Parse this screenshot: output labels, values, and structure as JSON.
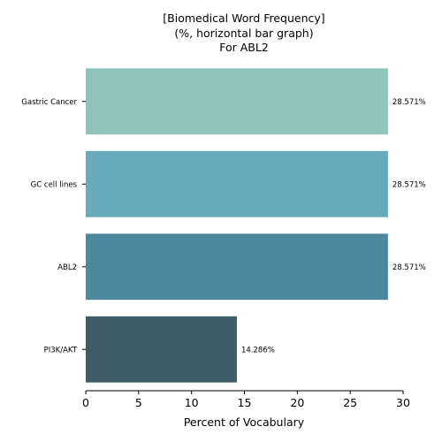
{
  "chart_data": {
    "type": "bar",
    "orientation": "horizontal",
    "title_lines": [
      "[Biomedical Word Frequency]",
      "(%, horizontal bar graph)",
      "For ABL2"
    ],
    "categories": [
      "Gastric Cancer",
      "GC cell lines",
      "ABL2",
      "PI3K/AKT"
    ],
    "values": [
      28.571,
      28.571,
      28.571,
      14.286
    ],
    "value_labels": [
      "28.571%",
      "28.571%",
      "28.571%",
      "14.286%"
    ],
    "colors": [
      "#90c3b9",
      "#67aabb",
      "#4d889f",
      "#3f5d67"
    ],
    "xlabel": "Percent of Vocabulary",
    "ylabel": "",
    "xlim": [
      0,
      30
    ],
    "xticks": [
      "0",
      "5",
      "10",
      "15",
      "20",
      "25",
      "30"
    ],
    "grid": false,
    "legend": "none"
  }
}
